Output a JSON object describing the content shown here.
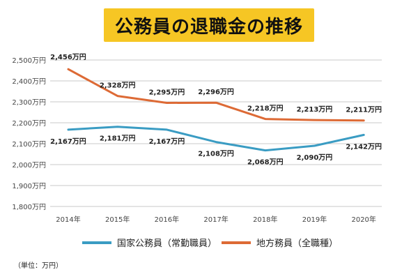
{
  "title": "公務員の退職金の推移",
  "colors": {
    "title_bg": "#f6c624",
    "national": "#3a9cc3",
    "local": "#dd6a35",
    "grid": "#c8c8c8"
  },
  "unit_note": "（単位：万円）",
  "chart_data": {
    "type": "line",
    "categories": [
      "2014年",
      "2015年",
      "2016年",
      "2017年",
      "2018年",
      "2019年",
      "2020年"
    ],
    "series": [
      {
        "name": "国家公務員（常勤職員）",
        "color": "#3a9cc3",
        "values": [
          2167,
          2181,
          2167,
          2108,
          2068,
          2090,
          2142
        ],
        "labels": [
          "2,167万円",
          "2,181万円",
          "2,167万円",
          "2,108万円",
          "2,068万円",
          "2,090万円",
          "2,142万円"
        ]
      },
      {
        "name": "地方務員（全職種）",
        "color": "#dd6a35",
        "values": [
          2456,
          2328,
          2295,
          2296,
          2218,
          2213,
          2211
        ],
        "labels": [
          "2,456万円",
          "2,328万円",
          "2,295万円",
          "2,296万円",
          "2,218万円",
          "2,213万円",
          "2,211万円"
        ]
      }
    ],
    "ylim": [
      1800,
      2500
    ],
    "yticks": [
      1800,
      1900,
      2000,
      2100,
      2200,
      2300,
      2400,
      2500
    ],
    "ytick_labels": [
      "1,800万円",
      "1,900万円",
      "2,000万円",
      "2,100万円",
      "2,200万円",
      "2,300万円",
      "2,400万円",
      "2,500万円"
    ],
    "grid": true,
    "legend_position": "bottom"
  }
}
